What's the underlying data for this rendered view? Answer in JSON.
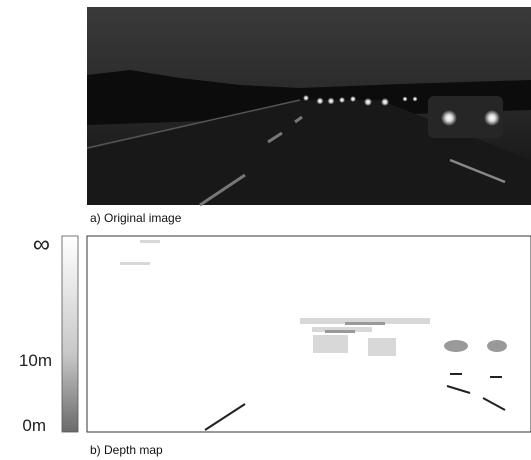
{
  "figure": {
    "panels": [
      {
        "caption": "a) Original image"
      },
      {
        "caption": "b) Depth map"
      }
    ],
    "colorbar": {
      "labels": [
        "∞",
        "10m",
        "0m"
      ]
    }
  }
}
